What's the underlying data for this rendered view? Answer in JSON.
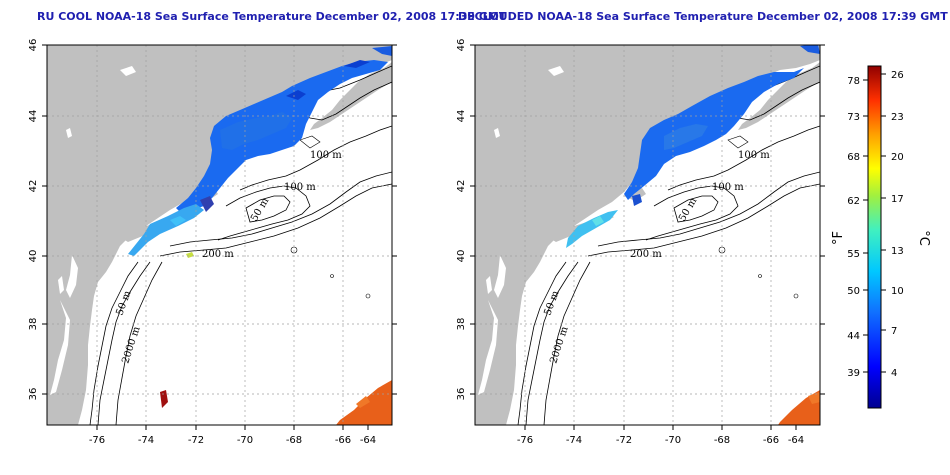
{
  "panels": [
    {
      "title": "RU COOL NOAA-18 Sea Surface Temperature December 02, 2008 17:39 GMT",
      "contour_labels": [
        "100 m",
        "100 m",
        "50 m",
        "200 m",
        "50 m",
        "2000 m"
      ]
    },
    {
      "title": "DECLOUDED NOAA-18 Sea Surface Temperature December 02, 2008 17:39 GMT",
      "contour_labels": [
        "100 m",
        "100 m",
        "50 m",
        "200 m",
        "50 m",
        "2000 m"
      ]
    }
  ],
  "axes": {
    "x_ticks": [
      "-76",
      "-74",
      "-72",
      "-70",
      "-68",
      "-66",
      "-64"
    ],
    "y_ticks": [
      "46",
      "44",
      "42",
      "40",
      "38",
      "36"
    ]
  },
  "colorbar": {
    "fahrenheit_unit": "°F",
    "celsius_unit": "°C",
    "fahrenheit_ticks": [
      "78",
      "73",
      "68",
      "62",
      "55",
      "50",
      "44",
      "39"
    ],
    "celsius_ticks": [
      "26",
      "23",
      "20",
      "17",
      "13",
      "10",
      "7",
      "4"
    ]
  },
  "colors": {
    "land": "#c0c0c0",
    "ocean": "#ffffff",
    "title": "#2020b0",
    "cold": "#1a5cf0",
    "warm": "#e85a1a"
  }
}
